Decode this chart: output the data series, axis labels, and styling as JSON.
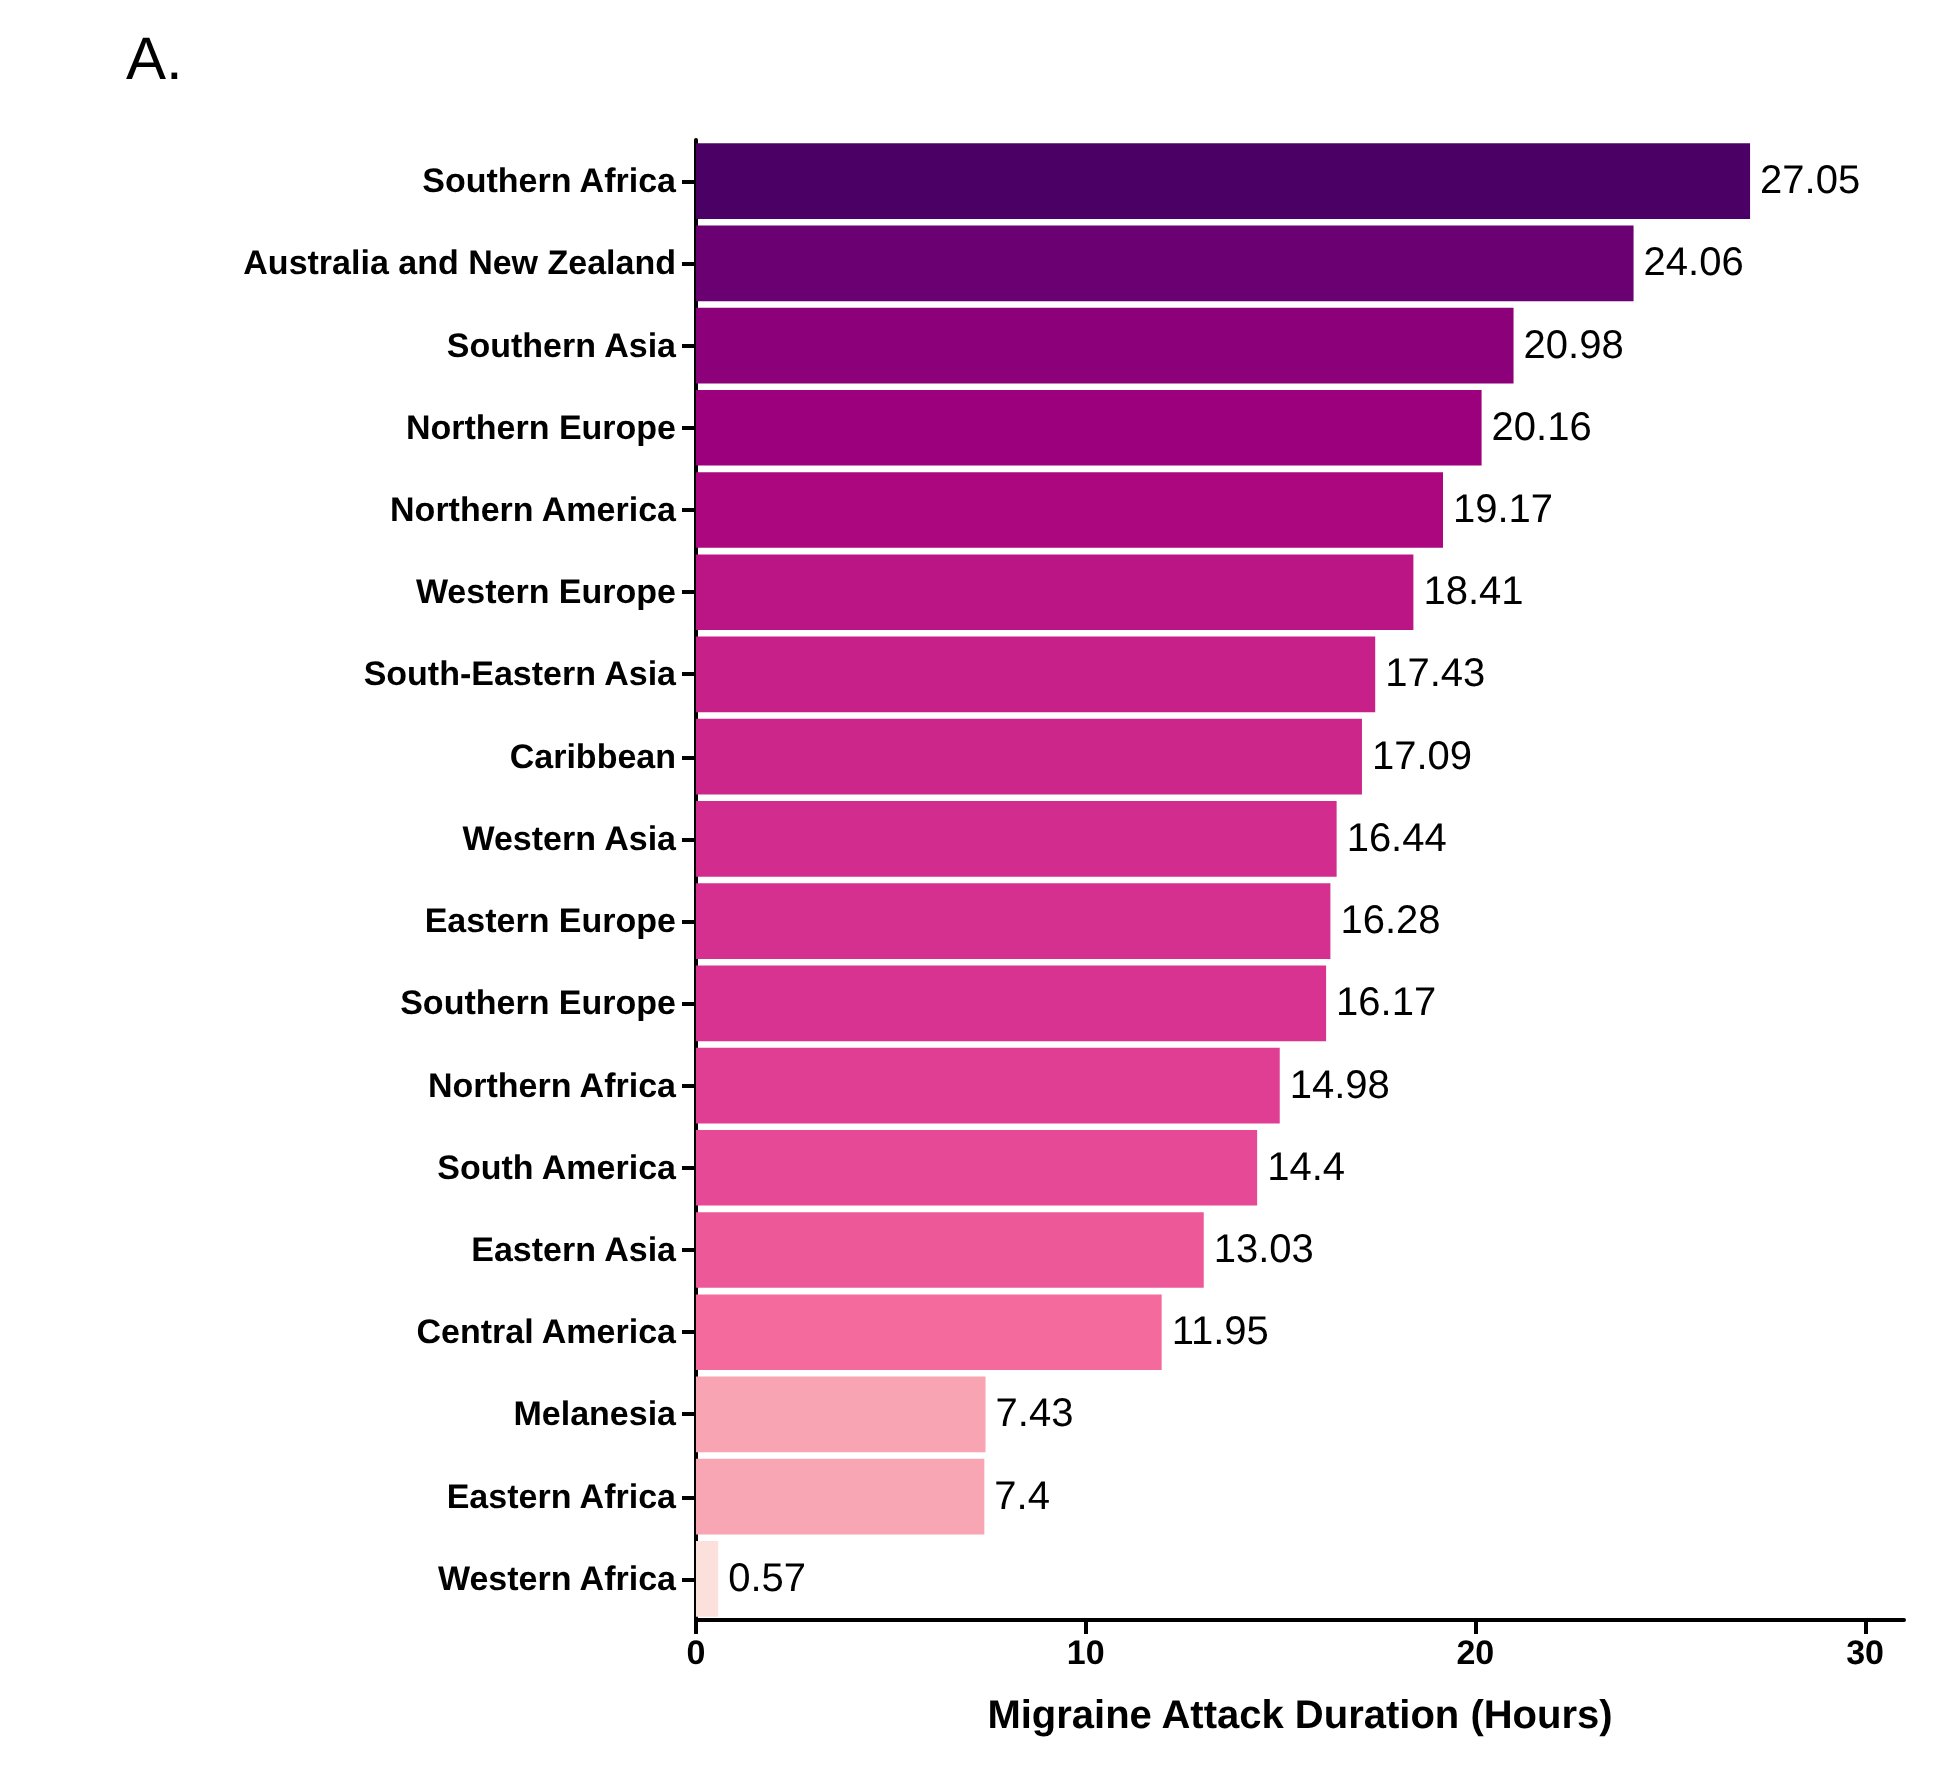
{
  "chart_data": {
    "type": "bar",
    "orientation": "horizontal",
    "title": "A.",
    "xlabel": "Migraine Attack Duration (Hours)",
    "categories": [
      "Southern Africa",
      "Australia and New Zealand",
      "Southern Asia",
      "Northern Europe",
      "Northern America",
      "Western Europe",
      "South-Eastern Asia",
      "Caribbean",
      "Western Asia",
      "Eastern Europe",
      "Southern Europe",
      "Northern Africa",
      "South America",
      "Eastern Asia",
      "Central America",
      "Melanesia",
      "Eastern Africa",
      "Western Africa"
    ],
    "values": [
      27.05,
      24.06,
      20.98,
      20.16,
      19.17,
      18.41,
      17.43,
      17.09,
      16.44,
      16.28,
      16.17,
      14.98,
      14.4,
      13.03,
      11.95,
      7.43,
      7.4,
      0.57
    ],
    "colors": [
      "#4b0066",
      "#6a0072",
      "#8c007a",
      "#9c007c",
      "#ad0780",
      "#bb1585",
      "#c72189",
      "#cd268b",
      "#d22c8f",
      "#d52f90",
      "#d83391",
      "#e03e93",
      "#e64996",
      "#ec5898",
      "#f46a9d",
      "#f9a4b2",
      "#f9a6b4",
      "#fce0dc"
    ],
    "xlim": [
      0,
      31
    ],
    "xticks": [
      0,
      10,
      20,
      30
    ],
    "data_labels": true,
    "grid": false
  }
}
